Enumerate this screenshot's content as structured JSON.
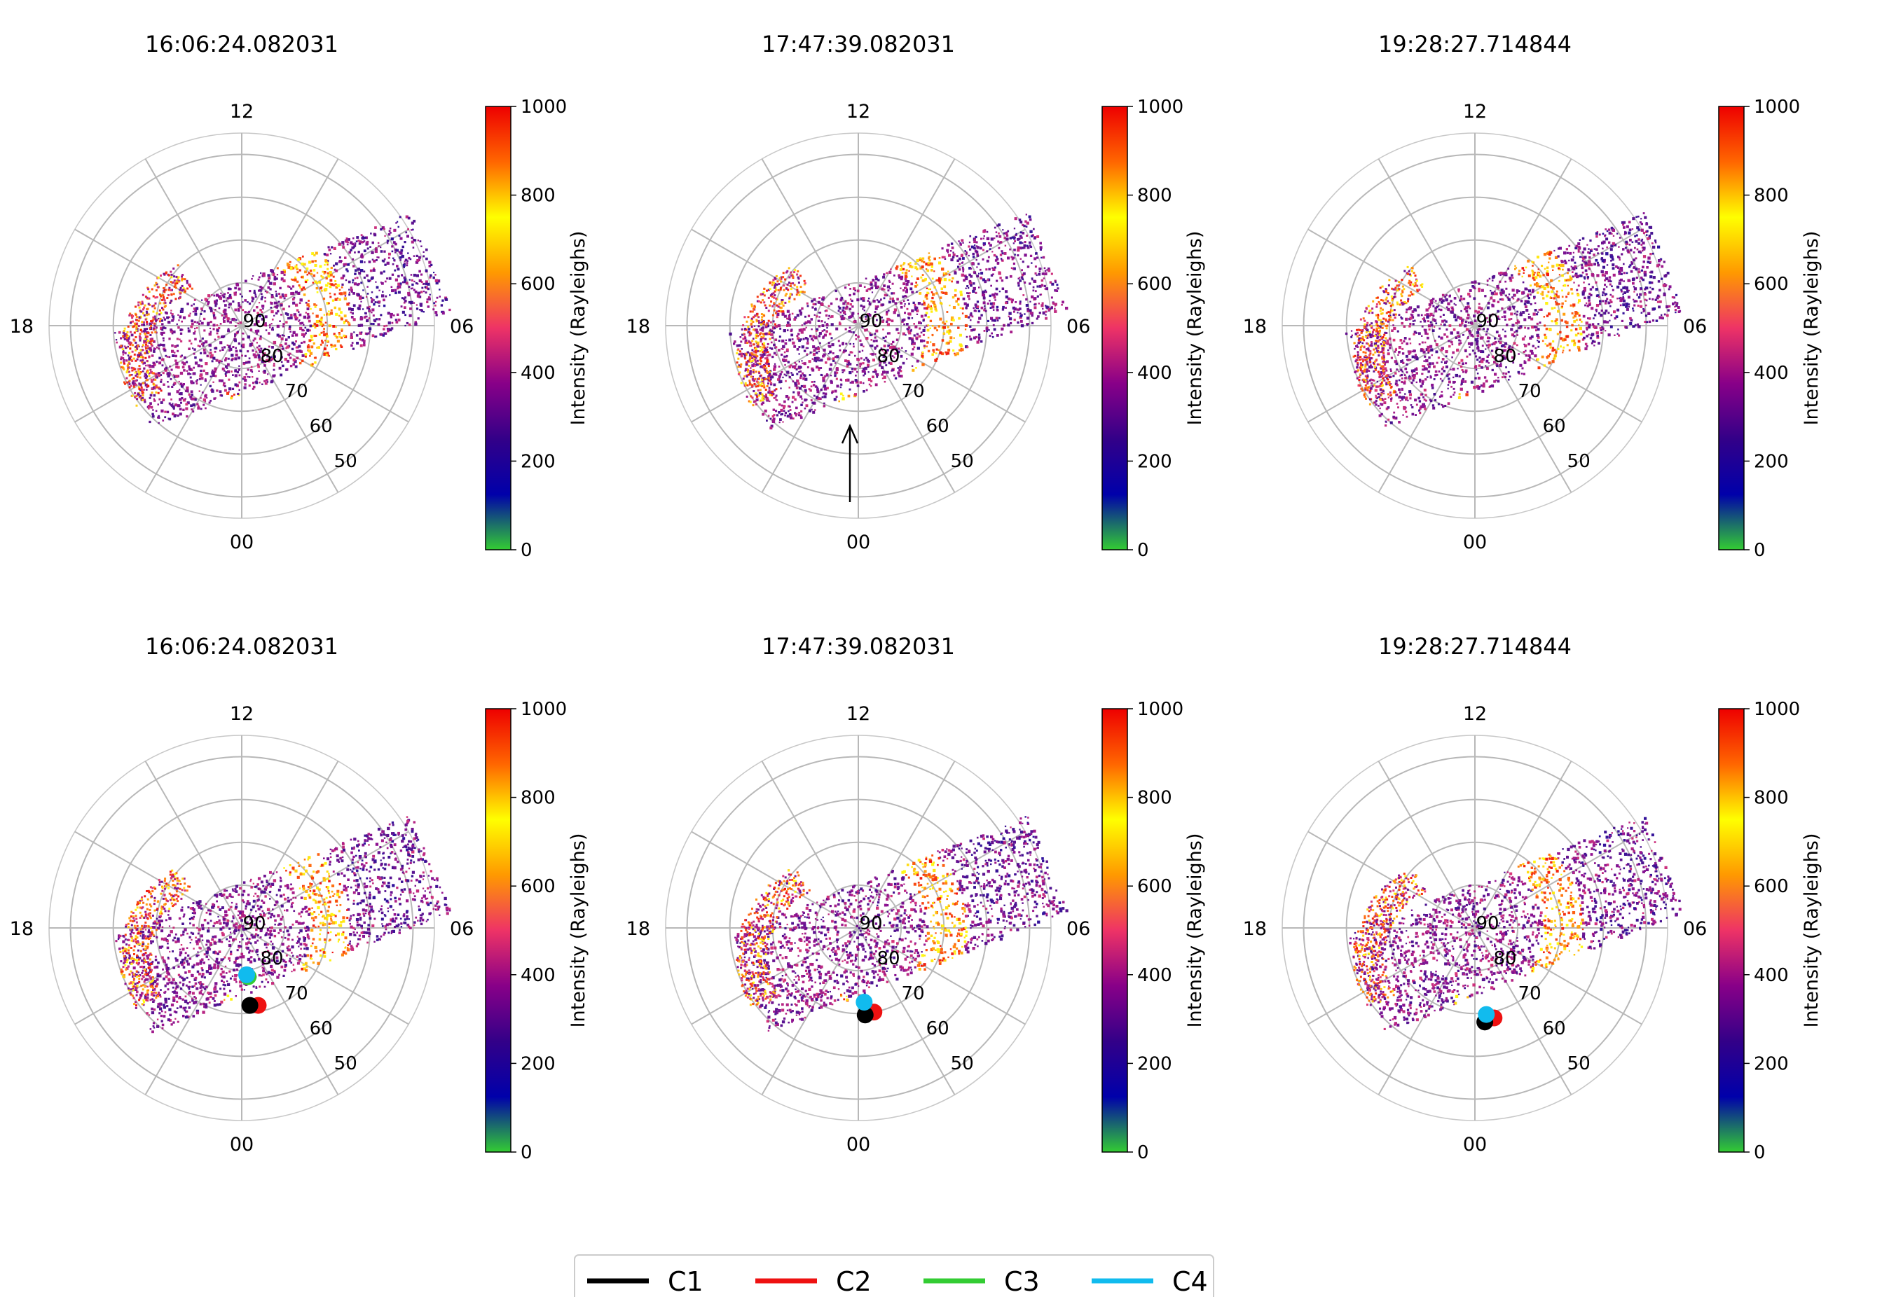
{
  "chart_data": {
    "type": "scatter",
    "projection": "polar (magnetic local time vs magnetic latitude)",
    "panels": [
      {
        "title": "16:06:24.082031",
        "row": 0,
        "col": 0,
        "arrow": false,
        "spacecraft": []
      },
      {
        "title": "17:47:39.082031",
        "row": 0,
        "col": 1,
        "arrow": true,
        "spacecraft": []
      },
      {
        "title": "19:28:27.714844",
        "row": 0,
        "col": 2,
        "arrow": false,
        "spacecraft": []
      },
      {
        "title": "16:06:24.082031",
        "row": 1,
        "col": 0,
        "arrow": false,
        "spacecraft": [
          {
            "name": "C2",
            "mlt": 0.8,
            "mlat": 71.5
          },
          {
            "name": "C1",
            "mlt": 0.4,
            "mlat": 71.8
          },
          {
            "name": "C3",
            "mlt": 0.5,
            "mlat": 78.5
          },
          {
            "name": "C4",
            "mlt": 0.4,
            "mlat": 79.0
          }
        ]
      },
      {
        "title": "17:47:39.082031",
        "row": 1,
        "col": 1,
        "arrow": false,
        "spacecraft": [
          {
            "name": "C2",
            "mlt": 0.7,
            "mlat": 70.0
          },
          {
            "name": "C1",
            "mlt": 0.3,
            "mlat": 69.6
          },
          {
            "name": "C4",
            "mlt": 0.3,
            "mlat": 72.6
          }
        ]
      },
      {
        "title": "19:28:27.714844",
        "row": 1,
        "col": 2,
        "arrow": false,
        "spacecraft": [
          {
            "name": "C2",
            "mlt": 0.8,
            "mlat": 68.5
          },
          {
            "name": "C1",
            "mlt": 0.4,
            "mlat": 67.9
          },
          {
            "name": "C4",
            "mlt": 0.5,
            "mlat": 69.6
          }
        ]
      }
    ],
    "lt_labels": {
      "top": "12",
      "right": "06",
      "bottom": "00",
      "left": "18"
    },
    "lat_rings": [
      90,
      80,
      70,
      60,
      50
    ],
    "radial_range_deg": [
      90,
      45
    ],
    "radial_spokes_every_hours": 2,
    "colorbar": {
      "label": "Intensity (Rayleighs)",
      "range": [
        0,
        1000
      ],
      "ticks": [
        0,
        200,
        400,
        600,
        800,
        1000
      ],
      "colormap_stops": [
        "#33cc33",
        "#0000aa",
        "#330088",
        "#880088",
        "#ee3366",
        "#ff9900",
        "#ffff00",
        "#ff6600",
        "#ee0000"
      ]
    },
    "legend": [
      {
        "label": "C1",
        "color": "#000000"
      },
      {
        "label": "C2",
        "color": "#ee1111"
      },
      {
        "label": "C3",
        "color": "#33cc33"
      },
      {
        "label": "C4",
        "color": "#11bbee"
      }
    ]
  }
}
